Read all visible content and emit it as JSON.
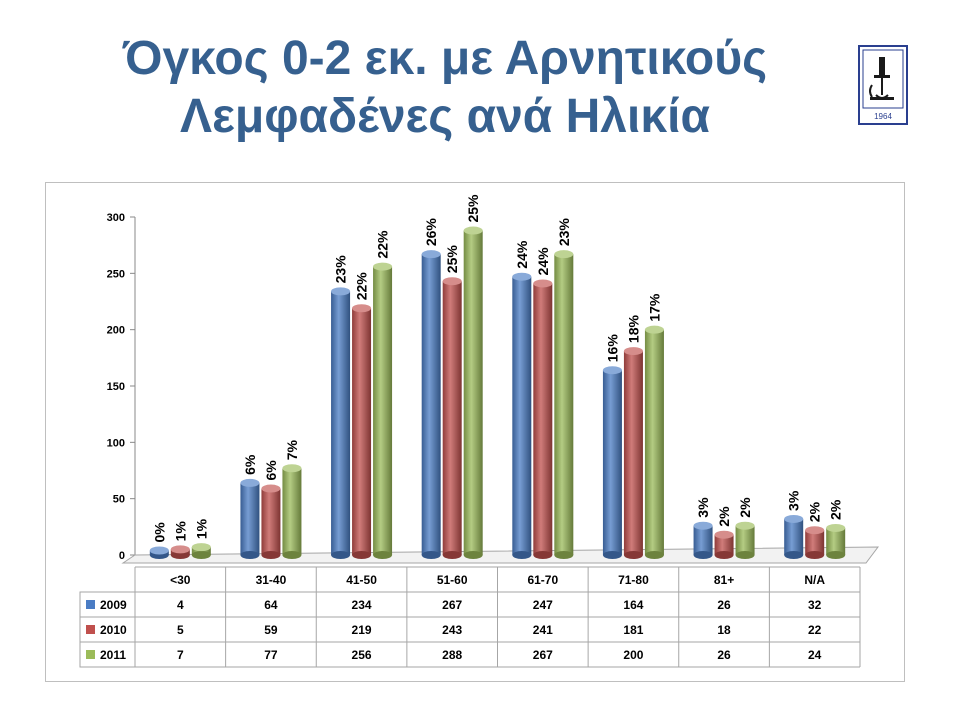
{
  "title_line1": "Όγκος 0-2 εκ. με Αρνητικούς",
  "title_line2": "Λεμφαδένες ανά Ηλικία",
  "logo": {
    "year": "1964",
    "icon": "institution-seal-icon"
  },
  "chart_data": {
    "type": "bar",
    "title": "Όγκος 0-2 εκ. με Αρνητικούς Λεμφαδένες ανά Ηλικία",
    "categories": [
      "<30",
      "31-40",
      "41-50",
      "51-60",
      "61-70",
      "71-80",
      "81+",
      "N/A"
    ],
    "series": [
      {
        "name": "2009",
        "color": "#4a7cc4",
        "values": [
          4,
          64,
          234,
          267,
          247,
          164,
          26,
          32
        ],
        "labels": [
          "0%",
          "6%",
          "23%",
          "26%",
          "24%",
          "16%",
          "3%",
          "3%"
        ]
      },
      {
        "name": "2010",
        "color": "#c0504d",
        "values": [
          5,
          59,
          219,
          243,
          241,
          181,
          18,
          22
        ],
        "labels": [
          "1%",
          "6%",
          "22%",
          "25%",
          "24%",
          "18%",
          "2%",
          "2%"
        ]
      },
      {
        "name": "2011",
        "color": "#9bbb59",
        "values": [
          7,
          77,
          256,
          288,
          267,
          200,
          26,
          24
        ],
        "labels": [
          "1%",
          "7%",
          "22%",
          "25%",
          "23%",
          "17%",
          "2%",
          "2%"
        ]
      }
    ],
    "yticks": [
      0,
      50,
      100,
      150,
      200,
      250,
      300
    ],
    "ylim": [
      0,
      300
    ],
    "grid": false,
    "legend": "data-table"
  }
}
